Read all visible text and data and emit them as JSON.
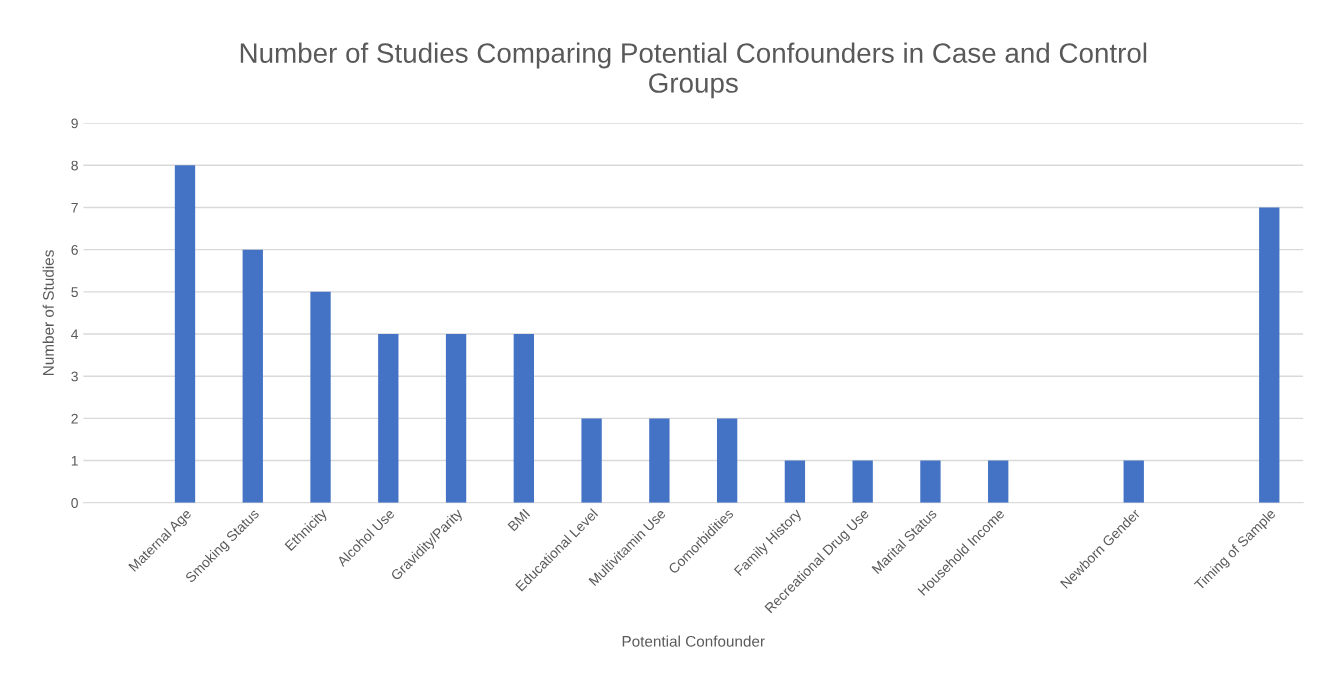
{
  "chart_data": {
    "type": "bar",
    "title": "Number of Studies Comparing Potential Confounders in Case and Control\nGroups",
    "xlabel": "Potential Confounder",
    "ylabel": "Number of Studies",
    "categories": [
      null,
      "Maternal Age",
      "Smoking Status",
      "Ethnicity",
      "Alcohol Use",
      "Gravidity/Parity",
      "BMI",
      "Educational Level",
      "Multivitamin Use",
      "Comorbidities",
      "Family History",
      "Recreational Drug Use",
      "Marital Status",
      "Household Income",
      null,
      "Newborn Gender",
      null,
      "Timing of Sample"
    ],
    "values": [
      null,
      8,
      6,
      5,
      4,
      4,
      4,
      2,
      2,
      2,
      1,
      1,
      1,
      1,
      null,
      1,
      null,
      7
    ],
    "color": "#4472c4",
    "ylim": [
      0,
      9
    ],
    "yticks": [
      0,
      1,
      2,
      3,
      4,
      5,
      6,
      7,
      8,
      9
    ],
    "grid": "y",
    "legend": false
  }
}
